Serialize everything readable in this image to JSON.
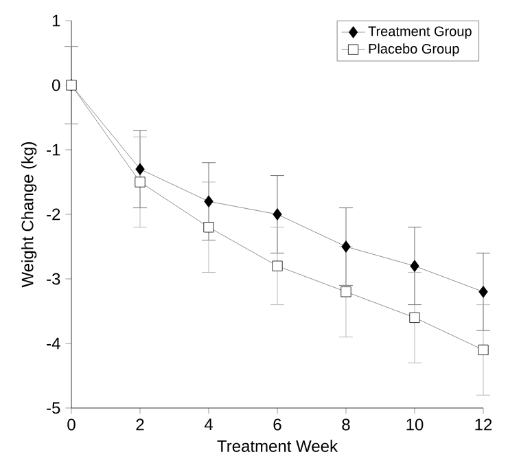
{
  "chart_data": {
    "type": "line",
    "xlabel": "Treatment Week",
    "ylabel": "Weight Change (kg)",
    "x": [
      0,
      2,
      4,
      6,
      8,
      10,
      12
    ],
    "xlim": [
      0,
      12
    ],
    "xticks": [
      0,
      2,
      4,
      6,
      8,
      10,
      12
    ],
    "ylim": [
      -5,
      1
    ],
    "yticks": [
      -5,
      -4,
      -3,
      -2,
      -1,
      0,
      1
    ],
    "series": [
      {
        "name": "Treatment Group",
        "color": "#000000",
        "marker": "diamond",
        "values": [
          0,
          -1.3,
          -1.8,
          -2.0,
          -2.5,
          -2.8,
          -3.2
        ],
        "errors": [
          0.6,
          0.6,
          0.6,
          0.6,
          0.6,
          0.6,
          0.6
        ]
      },
      {
        "name": "Placebo Group",
        "color": "#ffffff",
        "marker": "square",
        "values": [
          0,
          -1.5,
          -2.2,
          -2.8,
          -3.2,
          -3.6,
          -4.1
        ],
        "errors": [
          0.6,
          0.7,
          0.7,
          0.6,
          0.7,
          0.7,
          0.7
        ]
      }
    ],
    "grid": false,
    "legend": "top right",
    "line_style": "solid"
  }
}
